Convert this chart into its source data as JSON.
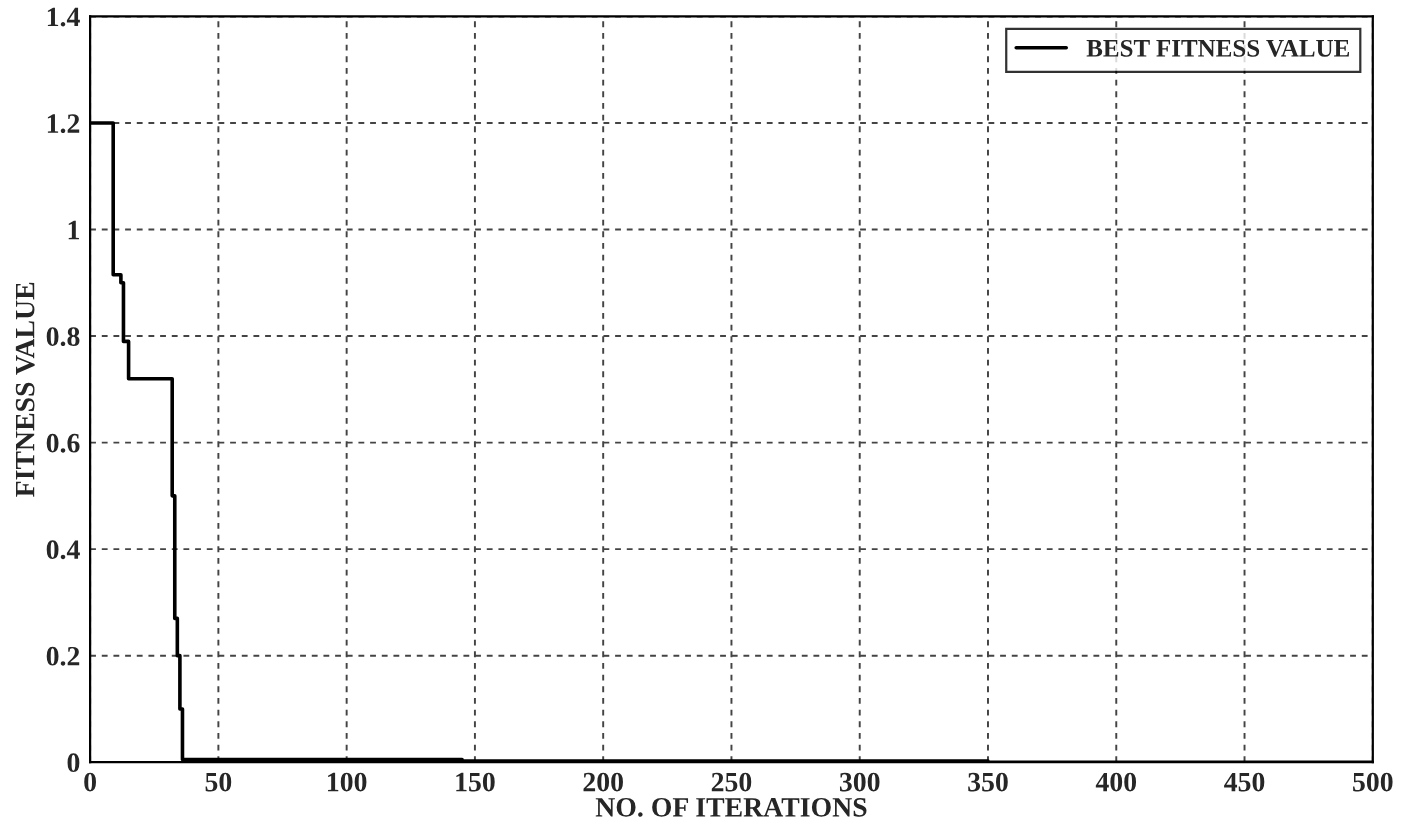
{
  "chart_data": {
    "type": "step",
    "xlabel": "NO. OF ITERATIONS",
    "ylabel": "FITNESS VALUE",
    "series": [
      {
        "name": "BEST FITNESS VALUE",
        "color": "#000000",
        "x": [
          0,
          9,
          12,
          13,
          15,
          32,
          33,
          34,
          35,
          36,
          145,
          350,
          500
        ],
        "values": [
          1.2,
          0.915,
          0.9,
          0.79,
          0.72,
          0.5,
          0.27,
          0.2,
          0.1,
          0.005,
          0.002,
          0,
          0
        ]
      }
    ],
    "xlim": [
      0,
      500
    ],
    "xticks": [
      0,
      50,
      100,
      150,
      200,
      250,
      300,
      350,
      400,
      450,
      500
    ],
    "ylim": [
      0,
      1.4
    ],
    "yticks": [
      0,
      0.2,
      0.4,
      0.6,
      0.8,
      1,
      1.2,
      1.4
    ],
    "grid": true,
    "legend": "top right",
    "line_style": "solid",
    "marker": "none"
  }
}
